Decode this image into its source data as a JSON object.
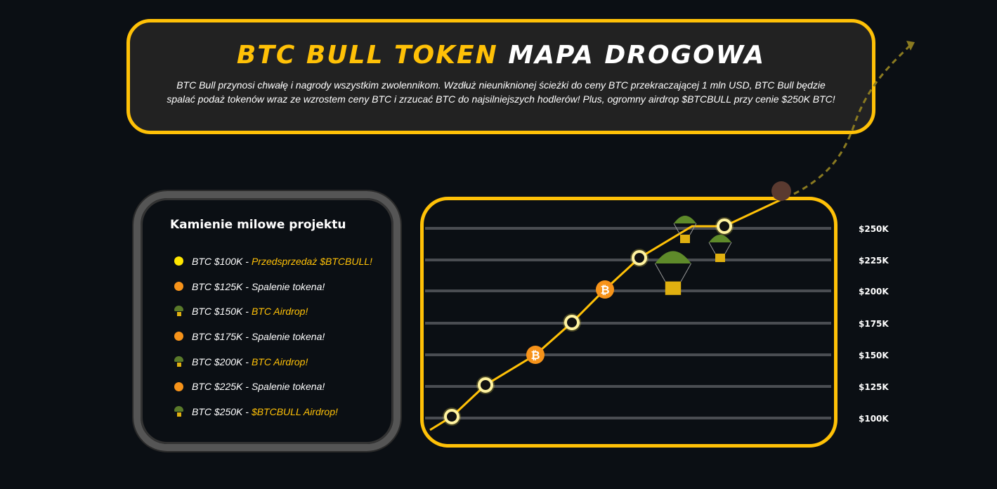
{
  "header": {
    "title_highlight": "BTC BULL TOKEN",
    "title_rest": "MAPA DROGOWA",
    "description": "BTC Bull przynosi chwałę i nagrody wszystkim zwolennikom. Wzdłuż nieuniknionej ścieżki do ceny BTC przekraczającej 1 mln USD, BTC Bull będzie spalać podaż tokenów wraz ze wzrostem ceny BTC i zrzucać BTC do najsilniejszych hodlerów! Plus, ogromny airdrop $BTCBULL przy cenie $250K BTC!"
  },
  "milestones": {
    "title": "Kamienie milowe projektu",
    "items": [
      {
        "price": "BTC $100K -",
        "event": "Przedsprzedaż $BTCBULL!",
        "icon": "yellow-dot",
        "highlight": true
      },
      {
        "price": "BTC $125K -",
        "event": "Spalenie tokena!",
        "icon": "orange-dot",
        "highlight": false
      },
      {
        "price": "BTC $150K -",
        "event": "BTC Airdrop!",
        "icon": "parachute",
        "highlight": true
      },
      {
        "price": "BTC $175K -",
        "event": "Spalenie tokena!",
        "icon": "orange-dot",
        "highlight": false
      },
      {
        "price": "BTC $200K -",
        "event": "BTC Airdrop!",
        "icon": "parachute",
        "highlight": true
      },
      {
        "price": "BTC $225K -",
        "event": "Spalenie tokena!",
        "icon": "orange-dot",
        "highlight": false
      },
      {
        "price": "BTC $250K -",
        "event": "$BTCBULL Airdrop!",
        "icon": "parachute",
        "highlight": true
      }
    ]
  },
  "roadmap_chart": {
    "y_labels": [
      "$250K",
      "$225K",
      "$200K",
      "$175K",
      "$150K",
      "$125K",
      "$100K"
    ],
    "nodes": [
      "ring",
      "ring",
      "bitcoin",
      "ring",
      "bitcoin",
      "ring",
      "ring",
      "bull"
    ]
  },
  "colors": {
    "accent": "#ffc107",
    "orange": "#f7931a",
    "background": "#0b0f14",
    "panel": "#222222"
  }
}
